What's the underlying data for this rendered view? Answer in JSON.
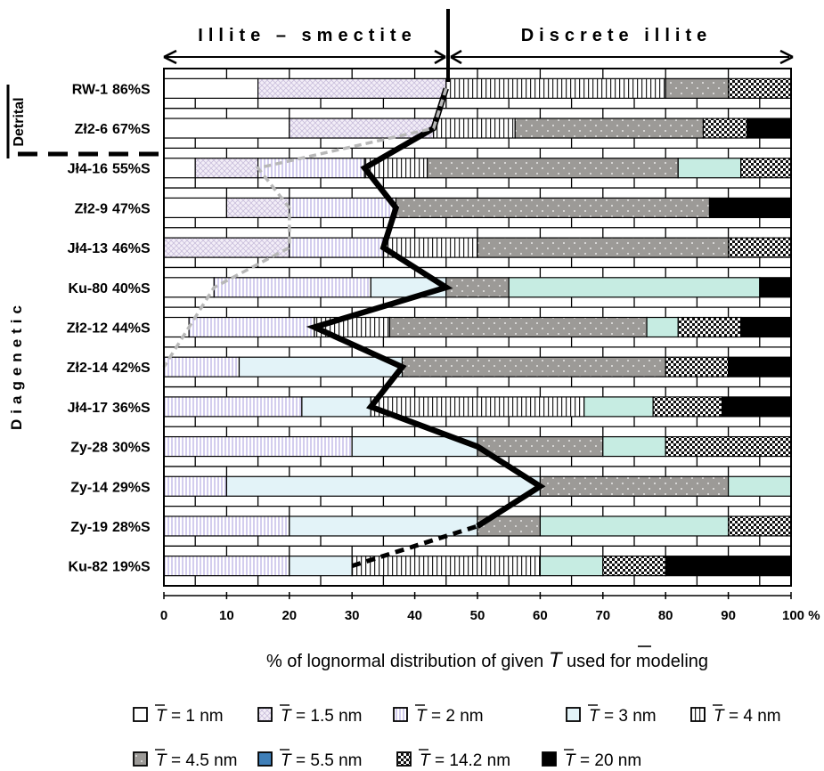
{
  "chart_data": {
    "type": "bar",
    "stacked": true,
    "orientation": "horizontal",
    "xlabel_pre": "% of lognormal distribution of given ",
    "xlabel_symbol": "T",
    "xlabel_post": " used for modeling",
    "xlim": [
      0,
      100
    ],
    "xticks": [
      "0",
      "10",
      "20",
      "30",
      "40",
      "50",
      "60",
      "70",
      "80",
      "90",
      "100 %"
    ],
    "regions": {
      "left": "Illite – smectite",
      "right": "Discrete illite"
    },
    "group_labels": {
      "detrital": "Detrital",
      "diagenetic": "Diagenetic"
    },
    "legend_symbol": "T",
    "series": [
      {
        "key": "t1",
        "label": "= 1 nm",
        "color": "#ffffff",
        "pattern": "plain"
      },
      {
        "key": "t15",
        "label": "= 1.5 nm",
        "color": "#efe8f5",
        "pattern": "crosshatch"
      },
      {
        "key": "t2",
        "label": "= 2 nm",
        "color": "#dcd6f0",
        "pattern": "vstripes-lilac"
      },
      {
        "key": "t3",
        "label": "= 3 nm",
        "color": "#e3f3f8",
        "pattern": "plain"
      },
      {
        "key": "t4",
        "label": "= 4 nm",
        "color": "#ffffff",
        "pattern": "vlines-black"
      },
      {
        "key": "t45",
        "label": "= 4.5 nm",
        "color": "#9c9a97",
        "pattern": "dots-white"
      },
      {
        "key": "t55",
        "label": "= 5.5 nm",
        "color": "#c6ece2",
        "pattern": "plain"
      },
      {
        "key": "t142",
        "label": "= 14.2 nm",
        "color": "#111111",
        "pattern": "dots-black"
      },
      {
        "key": "t20",
        "label": "= 20 nm",
        "color": "#000000",
        "pattern": "solid"
      }
    ],
    "rows": [
      {
        "sample": "RW-1",
        "percent_s": "86%S",
        "group": "detrital",
        "segments": [
          [
            "t1",
            15
          ],
          [
            "t15",
            30
          ],
          [
            "t4",
            35
          ],
          [
            "t45",
            10
          ],
          [
            "t142",
            10
          ]
        ],
        "boundary": 45
      },
      {
        "sample": "Zł2-6",
        "percent_s": "67%S",
        "group": "detrital",
        "segments": [
          [
            "t1",
            20
          ],
          [
            "t15",
            23
          ],
          [
            "t4",
            13
          ],
          [
            "t45",
            30
          ],
          [
            "t142",
            7
          ],
          [
            "t20",
            7
          ]
        ],
        "boundary": 43
      },
      {
        "sample": "Jł4-16",
        "percent_s": "55%S",
        "group": "diagenetic",
        "segments": [
          [
            "t1",
            5
          ],
          [
            "t15",
            10
          ],
          [
            "t2",
            17
          ],
          [
            "t4",
            10
          ],
          [
            "t45",
            40
          ],
          [
            "t55",
            10
          ],
          [
            "t142",
            8
          ]
        ],
        "boundary": 32
      },
      {
        "sample": "Zł2-9",
        "percent_s": "47%S",
        "group": "diagenetic",
        "segments": [
          [
            "t1",
            10
          ],
          [
            "t15",
            10
          ],
          [
            "t2",
            17
          ],
          [
            "t45",
            50
          ],
          [
            "t20",
            13
          ]
        ],
        "boundary": 37
      },
      {
        "sample": "Jł4-13",
        "percent_s": "46%S",
        "group": "diagenetic",
        "segments": [
          [
            "t15",
            20
          ],
          [
            "t2",
            15
          ],
          [
            "t4",
            15
          ],
          [
            "t45",
            40
          ],
          [
            "t142",
            10
          ]
        ],
        "boundary": 35
      },
      {
        "sample": "Ku-80",
        "percent_s": "40%S",
        "group": "diagenetic",
        "segments": [
          [
            "t1",
            8
          ],
          [
            "t2",
            25
          ],
          [
            "t3",
            12
          ],
          [
            "t45",
            10
          ],
          [
            "t55",
            40
          ],
          [
            "t20",
            5
          ]
        ],
        "boundary": 45
      },
      {
        "sample": "Zł2-12",
        "percent_s": "44%S",
        "group": "diagenetic",
        "segments": [
          [
            "t1",
            4
          ],
          [
            "t2",
            20
          ],
          [
            "t4",
            12
          ],
          [
            "t45",
            41
          ],
          [
            "t55",
            5
          ],
          [
            "t142",
            10
          ],
          [
            "t20",
            8
          ]
        ],
        "boundary": 24
      },
      {
        "sample": "Zł2-14",
        "percent_s": "42%S",
        "group": "diagenetic",
        "segments": [
          [
            "t2",
            12
          ],
          [
            "t3",
            26
          ],
          [
            "t45",
            42
          ],
          [
            "t142",
            10
          ],
          [
            "t20",
            10
          ]
        ],
        "boundary": 38
      },
      {
        "sample": "Jł4-17",
        "percent_s": "36%S",
        "group": "diagenetic",
        "segments": [
          [
            "t2",
            22
          ],
          [
            "t3",
            11
          ],
          [
            "t4",
            34
          ],
          [
            "t55",
            11
          ],
          [
            "t142",
            11
          ],
          [
            "t20",
            11
          ]
        ],
        "boundary": 33
      },
      {
        "sample": "Zy-28",
        "percent_s": "30%S",
        "group": "diagenetic",
        "segments": [
          [
            "t2",
            30
          ],
          [
            "t3",
            20
          ],
          [
            "t45",
            20
          ],
          [
            "t55",
            10
          ],
          [
            "t142",
            20
          ]
        ],
        "boundary": 50
      },
      {
        "sample": "Zy-14",
        "percent_s": "29%S",
        "group": "diagenetic",
        "segments": [
          [
            "t2",
            10
          ],
          [
            "t3",
            50
          ],
          [
            "t45",
            30
          ],
          [
            "t55",
            10
          ]
        ],
        "boundary": 60
      },
      {
        "sample": "Zy-19",
        "percent_s": "28%S",
        "group": "diagenetic",
        "segments": [
          [
            "t2",
            20
          ],
          [
            "t3",
            30
          ],
          [
            "t45",
            10
          ],
          [
            "t55",
            30
          ],
          [
            "t142",
            10
          ]
        ],
        "boundary": 50
      },
      {
        "sample": "Ku-82",
        "percent_s": "19%S",
        "group": "diagenetic",
        "segments": [
          [
            "t2",
            20
          ],
          [
            "t3",
            10
          ],
          [
            "t4",
            30
          ],
          [
            "t55",
            10
          ],
          [
            "t142",
            10
          ],
          [
            "t20",
            20
          ]
        ],
        "boundary": 30
      }
    ],
    "grey_dashed_line": [
      [
        45,
        0
      ],
      [
        43,
        1
      ],
      [
        15,
        2
      ],
      [
        20,
        3
      ],
      [
        20,
        4
      ],
      [
        8,
        5
      ],
      [
        4,
        6
      ],
      [
        0,
        7
      ]
    ],
    "boundary_dashed_segment": [
      [
        30,
        12
      ],
      [
        50,
        11
      ]
    ]
  }
}
